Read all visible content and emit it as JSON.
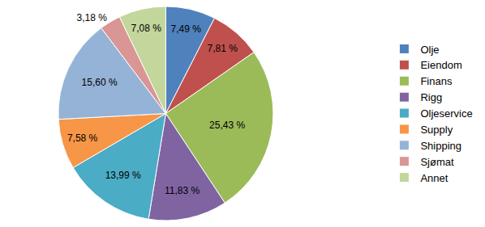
{
  "chart_data": {
    "type": "pie",
    "categories": [
      "Olje",
      "Eiendom",
      "Finans",
      "Rigg",
      "Oljeservice",
      "Supply",
      "Shipping",
      "Sjømat",
      "Annet"
    ],
    "values": [
      7.49,
      7.81,
      25.43,
      11.83,
      13.99,
      7.58,
      15.6,
      3.18,
      7.08
    ],
    "value_labels": [
      "7,49 %",
      "7,81 %",
      "25,43 %",
      "11,83 %",
      "13,99 %",
      "7,58 %",
      "15,60 %",
      "3,18 %",
      "7,08 %"
    ],
    "colors": [
      "#4F81BD",
      "#C0504D",
      "#9BBB59",
      "#8064A2",
      "#4BACC6",
      "#F79646",
      "#95B3D7",
      "#D99694",
      "#C3D69B"
    ],
    "data_labels": true,
    "legend": "right"
  }
}
